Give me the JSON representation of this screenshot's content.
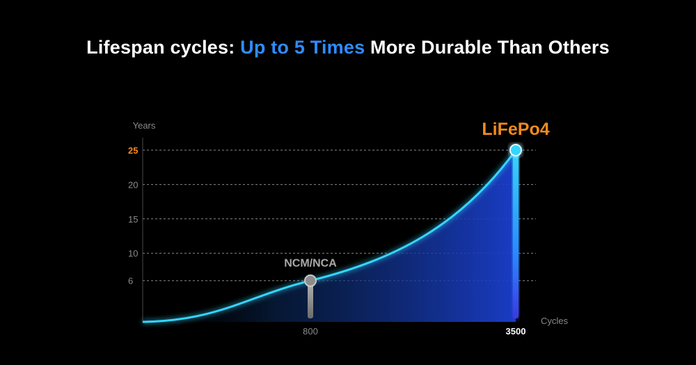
{
  "headline": {
    "prefix": "Lifespan cycles: ",
    "highlight": "Up to 5 Times",
    "suffix": " More Durable Than Others"
  },
  "colors": {
    "background": "#000000",
    "highlight_blue": "#2f8cff",
    "accent_orange": "#f28a1e",
    "curve_cyan": "#36d6ff",
    "area_blue": "#1b3fd0",
    "ncm_gray": "#8c8c8c"
  },
  "chart_data": {
    "type": "area",
    "ylabel": "Years",
    "xlabel": "Cycles",
    "y_ticks": [
      "6",
      "10",
      "15",
      "20",
      "25"
    ],
    "y_tick_values": [
      6,
      10,
      15,
      20,
      25
    ],
    "y_highlight_tick": "25",
    "x_ticks": [
      "800",
      "3500"
    ],
    "x_tick_values": [
      800,
      3500
    ],
    "x_highlight_tick": "3500",
    "grid": true,
    "series": [
      {
        "points": [
          {
            "x": 0,
            "y": 0
          },
          {
            "x": 800,
            "y": 6,
            "label": "NCM/NCA"
          },
          {
            "x": 3500,
            "y": 25,
            "label": "LiFePo4"
          }
        ]
      }
    ]
  }
}
